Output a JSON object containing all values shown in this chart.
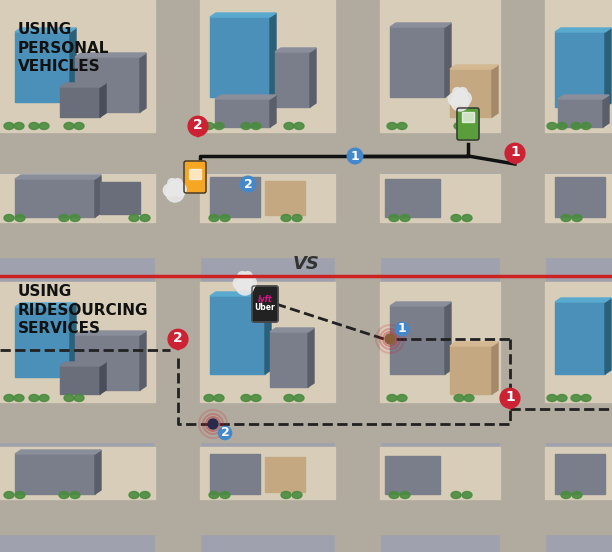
{
  "bg_color": "#9fa2ae",
  "divider_color": "#cc2222",
  "title_top": "USING\nPERSONAL\nVEHICLES",
  "title_bottom": "USING\nRIDESOURCING\nSERVICES",
  "vs_text": "VS",
  "road_color": "#b0ab9e",
  "sidewalk_color": "#d8cdb8",
  "building_blue": "#4a90b8",
  "building_blue_side": "#2a607a",
  "building_blue_top": "#5aaad0",
  "building_gray": "#7a7d8a",
  "building_gray_side": "#5a5d6a",
  "building_gray_top": "#8a8d9a",
  "building_tan": "#c4a882",
  "building_tan_side": "#a4886a",
  "building_tan_top": "#d4b892",
  "green_color": "#4a8c3f",
  "pin_red": "#cc2233",
  "pin_blue": "#4488cc",
  "car_orange": "#f5a623",
  "car_green": "#5a9e3c",
  "car_black": "#222222",
  "smoke_color": "#e8e8e8",
  "lyft_pink": "#ea0b8c",
  "line_color": "#111111",
  "dashed_color": "#222222"
}
